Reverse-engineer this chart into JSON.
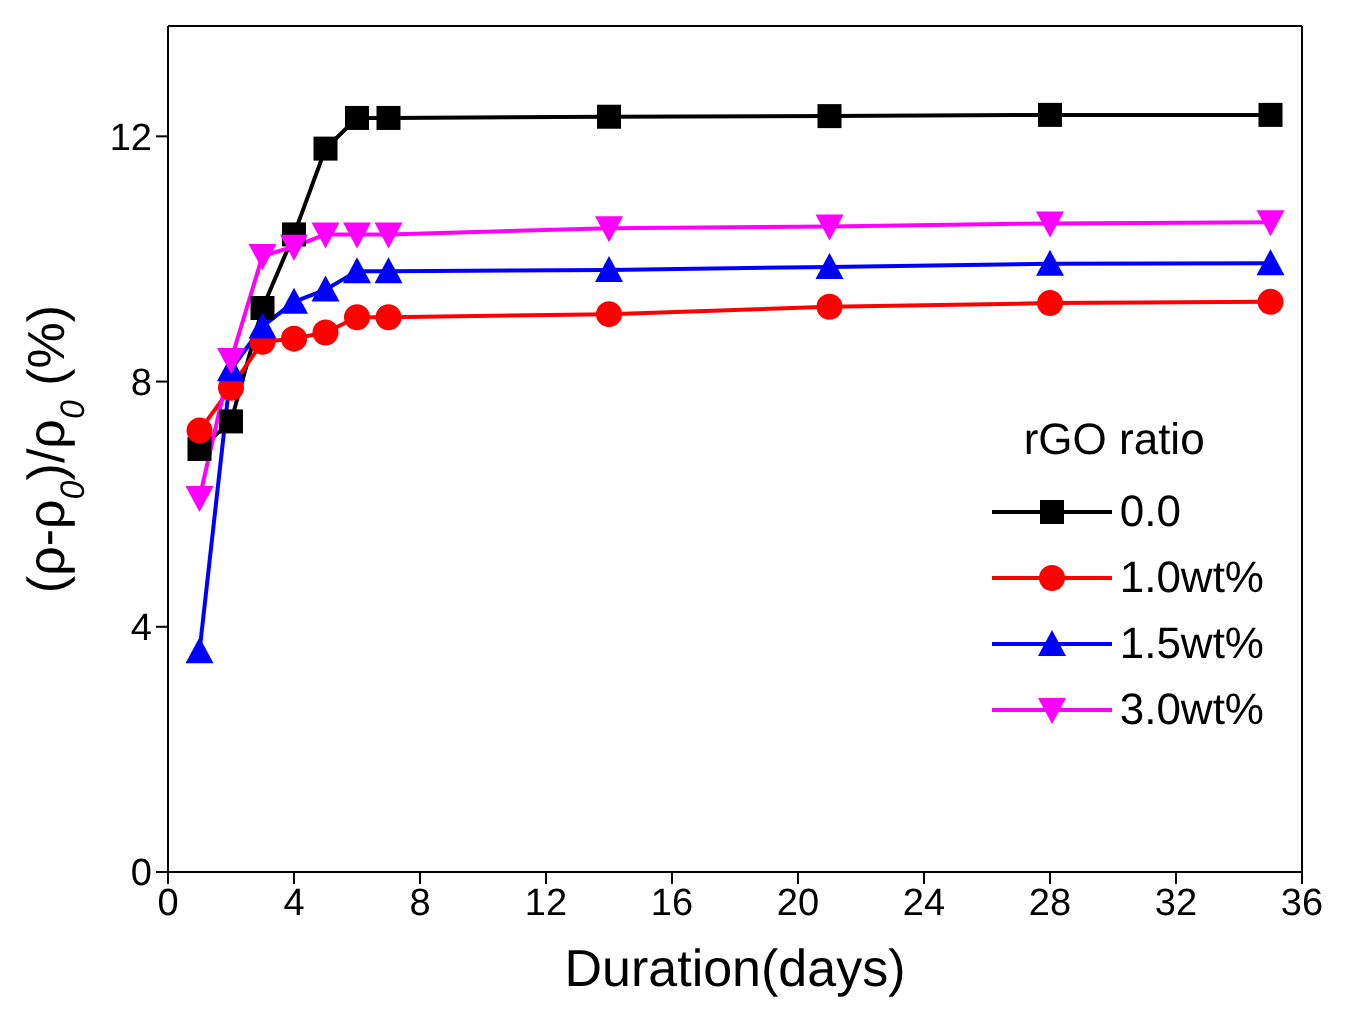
{
  "chart_data": {
    "type": "line",
    "xlabel": "Duration(days)",
    "ylabel": "(ρ-ρ$_{0}$)/ρ$_{0}$ (%)",
    "legend_title": "rGO ratio",
    "legend": "bottom right",
    "grid": false,
    "x": [
      1,
      2,
      3,
      4,
      5,
      6,
      7,
      14,
      21,
      28,
      35
    ],
    "xlim": [
      0,
      36
    ],
    "xticks": [
      0,
      4,
      8,
      12,
      16,
      20,
      24,
      28,
      32,
      36
    ],
    "ylim": [
      0,
      13.8
    ],
    "yticks": [
      0,
      4,
      8,
      12
    ],
    "series": [
      {
        "name": "0.0",
        "color": "#000000",
        "marker": "square",
        "values": [
          6.9,
          7.35,
          9.2,
          10.4,
          11.8,
          12.3,
          12.3,
          12.32,
          12.33,
          12.35,
          12.35
        ]
      },
      {
        "name": "1.0wt%",
        "color": "#ff0000",
        "marker": "circle",
        "values": [
          7.2,
          7.9,
          8.65,
          8.7,
          8.8,
          9.05,
          9.05,
          9.1,
          9.22,
          9.28,
          9.3
        ]
      },
      {
        "name": "1.5wt%",
        "color": "#0000ff",
        "marker": "triangle",
        "values": [
          3.6,
          8.2,
          8.9,
          9.3,
          9.5,
          9.8,
          9.8,
          9.82,
          9.87,
          9.92,
          9.93
        ]
      },
      {
        "name": "3.0wt%",
        "color": "#ff00ff",
        "marker": "triangle-down",
        "values": [
          6.1,
          8.35,
          10.05,
          10.2,
          10.4,
          10.4,
          10.4,
          10.5,
          10.53,
          10.58,
          10.6
        ]
      }
    ]
  }
}
